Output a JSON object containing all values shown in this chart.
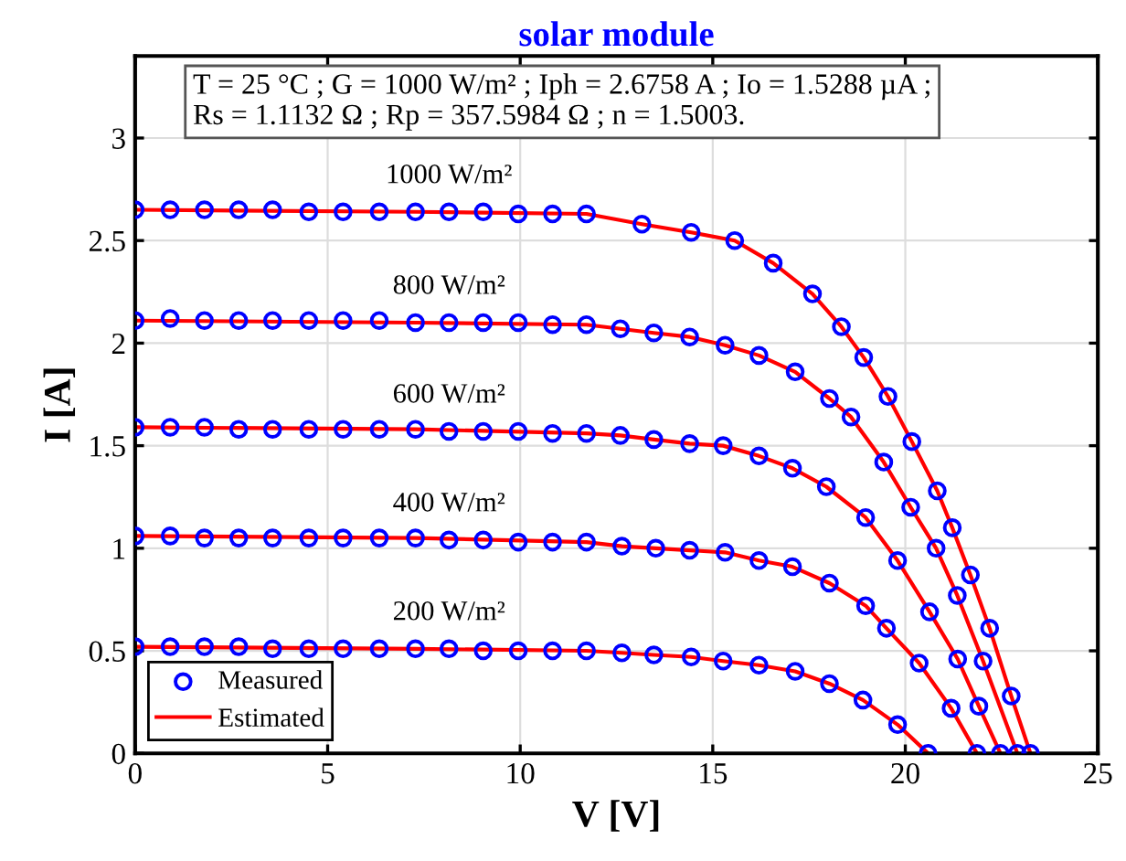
{
  "chart_data": {
    "type": "scatter",
    "title": "solar module",
    "xlabel": "V [V]",
    "ylabel": "I [A]",
    "xlim": [
      0,
      25
    ],
    "ylim": [
      0,
      3.4
    ],
    "xticks": [
      0,
      5,
      10,
      15,
      20,
      25
    ],
    "yticks": [
      0,
      0.5,
      1,
      1.5,
      2,
      2.5,
      3
    ],
    "grid": true,
    "legend": "bottom left",
    "annotations": [
      "T = 25 °C ; G = 1000 W/m² ; Iph = 2.6758 A ; Io = 1.5288 µA ;\nRs = 1.1132 Ω ; Rp = 357.5984 Ω ; n = 1.5003.",
      "1000 W/m²",
      "800 W/m²",
      "600 W/m²",
      "400 W/m²",
      "200 W/m²"
    ],
    "series": [
      {
        "name": "Measured",
        "marker": "circle",
        "color": "#0000ff",
        "x": [
          0,
          0.91,
          1.8,
          2.69,
          3.57,
          4.51,
          5.4,
          6.34,
          7.28,
          8.15,
          9.04,
          9.95,
          10.84,
          11.72,
          13.16,
          14.44,
          15.57,
          16.57,
          17.59,
          18.34,
          18.92,
          19.55,
          20.17,
          20.83,
          21.22,
          21.69,
          22.19,
          22.75,
          23.25
        ],
        "values": [
          2.65,
          2.65,
          2.65,
          2.65,
          2.65,
          2.64,
          2.64,
          2.64,
          2.64,
          2.64,
          2.64,
          2.63,
          2.63,
          2.63,
          2.58,
          2.54,
          2.5,
          2.39,
          2.24,
          2.08,
          1.93,
          1.74,
          1.52,
          1.28,
          1.1,
          0.87,
          0.61,
          0.28,
          0
        ]
      },
      {
        "marker": "circle",
        "color": "#0000ff",
        "x": [
          0,
          0.91,
          1.8,
          2.69,
          3.57,
          4.51,
          5.4,
          6.34,
          7.28,
          8.15,
          9.04,
          9.95,
          10.84,
          11.72,
          12.6,
          13.47,
          14.4,
          15.32,
          16.2,
          17.14,
          18.03,
          18.59,
          19.44,
          20.14,
          20.8,
          21.35,
          22.02,
          22.91
        ],
        "values": [
          2.11,
          2.12,
          2.11,
          2.11,
          2.11,
          2.11,
          2.11,
          2.11,
          2.1,
          2.1,
          2.1,
          2.1,
          2.09,
          2.09,
          2.07,
          2.05,
          2.03,
          1.99,
          1.94,
          1.86,
          1.73,
          1.64,
          1.42,
          1.2,
          1,
          0.77,
          0.45,
          0
        ]
      },
      {
        "marker": "circle",
        "color": "#0000ff",
        "x": [
          0,
          0.91,
          1.8,
          2.69,
          3.57,
          4.51,
          5.4,
          6.34,
          7.28,
          8.15,
          9.04,
          9.95,
          10.84,
          11.72,
          12.6,
          13.47,
          14.4,
          15.27,
          16.2,
          17.07,
          17.95,
          18.97,
          19.8,
          20.63,
          21.36,
          21.91,
          22.47
        ],
        "values": [
          1.59,
          1.59,
          1.59,
          1.58,
          1.58,
          1.58,
          1.58,
          1.58,
          1.58,
          1.57,
          1.57,
          1.57,
          1.56,
          1.56,
          1.55,
          1.53,
          1.51,
          1.5,
          1.45,
          1.39,
          1.3,
          1.15,
          0.94,
          0.69,
          0.46,
          0.23,
          0
        ]
      },
      {
        "marker": "circle",
        "color": "#0000ff",
        "x": [
          0,
          0.91,
          1.8,
          2.69,
          3.57,
          4.51,
          5.4,
          6.34,
          7.28,
          8.15,
          9.04,
          9.95,
          10.84,
          11.72,
          12.64,
          13.52,
          14.4,
          15.32,
          16.2,
          17.07,
          18.03,
          18.97,
          19.51,
          20.36,
          21.19,
          21.86
        ],
        "values": [
          1.06,
          1.06,
          1.05,
          1.05,
          1.05,
          1.05,
          1.05,
          1.05,
          1.05,
          1.04,
          1.04,
          1.03,
          1.03,
          1.03,
          1.01,
          1.0,
          0.99,
          0.98,
          0.94,
          0.91,
          0.83,
          0.72,
          0.61,
          0.44,
          0.22,
          0
        ]
      },
      {
        "marker": "circle",
        "color": "#0000ff",
        "x": [
          0,
          0.91,
          1.8,
          2.69,
          3.57,
          4.51,
          5.4,
          6.34,
          7.28,
          8.15,
          9.04,
          9.95,
          10.84,
          11.72,
          12.64,
          13.47,
          14.44,
          15.27,
          16.2,
          17.14,
          18.03,
          18.9,
          19.8,
          20.59
        ],
        "values": [
          0.52,
          0.52,
          0.52,
          0.52,
          0.51,
          0.51,
          0.51,
          0.51,
          0.51,
          0.51,
          0.5,
          0.5,
          0.5,
          0.5,
          0.49,
          0.48,
          0.47,
          0.45,
          0.43,
          0.4,
          0.34,
          0.26,
          0.14,
          0
        ]
      },
      {
        "name": "Estimated",
        "type": "line",
        "marker": "none",
        "color": "#ff0000",
        "x": [
          0,
          7.28,
          11.72,
          13.16,
          14.44,
          15.57,
          16.57,
          17.59,
          18.34,
          18.92,
          19.55,
          20.17,
          20.83,
          21.22,
          21.69,
          22.19,
          22.75,
          23.25
        ],
        "values": [
          2.65,
          2.64,
          2.63,
          2.58,
          2.54,
          2.5,
          2.39,
          2.24,
          2.08,
          1.93,
          1.74,
          1.52,
          1.28,
          1.1,
          0.87,
          0.61,
          0.28,
          0
        ]
      },
      {
        "type": "line",
        "marker": "none",
        "color": "#ff0000",
        "x": [
          0,
          7.28,
          11.72,
          12.6,
          13.47,
          14.4,
          15.32,
          16.2,
          17.14,
          18.03,
          18.59,
          19.44,
          20.14,
          20.8,
          21.35,
          22.02,
          22.91
        ],
        "values": [
          2.11,
          2.1,
          2.09,
          2.07,
          2.05,
          2.03,
          1.99,
          1.94,
          1.86,
          1.73,
          1.64,
          1.42,
          1.2,
          1,
          0.77,
          0.45,
          0
        ]
      },
      {
        "type": "line",
        "marker": "none",
        "color": "#ff0000",
        "x": [
          0,
          7.28,
          11.72,
          12.6,
          13.47,
          14.4,
          15.27,
          16.2,
          17.07,
          17.95,
          18.97,
          19.8,
          20.63,
          21.36,
          21.91,
          22.47
        ],
        "values": [
          1.59,
          1.58,
          1.56,
          1.55,
          1.53,
          1.51,
          1.5,
          1.45,
          1.39,
          1.3,
          1.15,
          0.94,
          0.69,
          0.46,
          0.23,
          0
        ]
      },
      {
        "type": "line",
        "marker": "none",
        "color": "#ff0000",
        "x": [
          0,
          7.28,
          11.72,
          12.64,
          13.52,
          14.4,
          15.32,
          16.2,
          17.07,
          18.03,
          18.97,
          19.51,
          20.36,
          21.19,
          21.86
        ],
        "values": [
          1.06,
          1.05,
          1.03,
          1.01,
          1.0,
          0.99,
          0.98,
          0.94,
          0.91,
          0.83,
          0.72,
          0.61,
          0.44,
          0.22,
          0
        ]
      },
      {
        "type": "line",
        "marker": "none",
        "color": "#ff0000",
        "x": [
          0,
          7.28,
          11.72,
          12.64,
          13.47,
          14.44,
          15.27,
          16.2,
          17.14,
          18.03,
          18.9,
          19.8,
          20.59
        ],
        "values": [
          0.52,
          0.51,
          0.5,
          0.49,
          0.48,
          0.47,
          0.45,
          0.43,
          0.4,
          0.34,
          0.26,
          0.14,
          0
        ]
      }
    ]
  }
}
